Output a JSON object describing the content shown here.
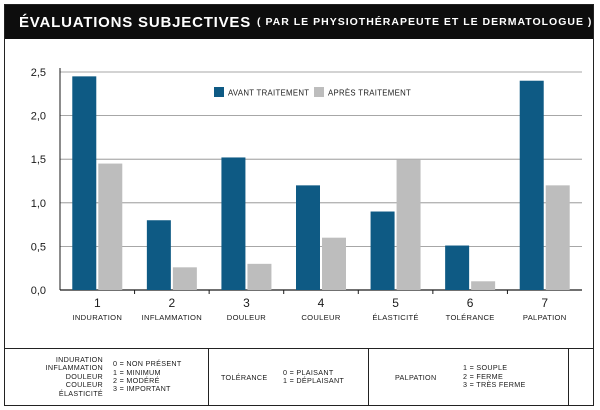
{
  "header": {
    "title": "ÉVALUATIONS SUBJECTIVES",
    "subtitle": "( PAR LE PHYSIOTHÉRAPEUTE ET LE DERMATOLOGUE )"
  },
  "chart_data": {
    "type": "bar",
    "numbers": [
      "1",
      "2",
      "3",
      "4",
      "5",
      "6",
      "7"
    ],
    "categories": [
      "INDURATION",
      "INFLAMMATION",
      "DOULEUR",
      "COULEUR",
      "ÉLASTICITÉ",
      "TOLÉRANCE",
      "PALPATION"
    ],
    "series": [
      {
        "name": "AVANT TRAITEMENT",
        "color": "#0e5a84",
        "values": [
          2.45,
          0.8,
          1.52,
          1.2,
          0.9,
          0.51,
          2.4
        ]
      },
      {
        "name": "APRÈS TRAITEMENT",
        "color": "#bdbdbd",
        "values": [
          1.45,
          0.26,
          0.3,
          0.6,
          1.5,
          0.1,
          1.2
        ]
      }
    ],
    "yticks": [
      "0,0",
      "0,5",
      "1,0",
      "1,5",
      "2,0",
      "2,5"
    ],
    "ylim": [
      0,
      2.5
    ],
    "grid": true,
    "legend_position": "top-center"
  },
  "scale_table": {
    "group1": {
      "labels": [
        "INDURATION",
        "INFLAMMATION",
        "DOULEUR",
        "COULEUR",
        "ÉLASTICITÉ"
      ],
      "values": [
        "0 = NON PRÉSENT",
        "1 = MINIMUM",
        "2 = MODÉRÉ",
        "3 = IMPORTANT"
      ]
    },
    "group2": {
      "label": "TOLÉRANCE",
      "values": [
        "0 = PLAISANT",
        "1 = DÉPLAISANT"
      ]
    },
    "group3": {
      "label": "PALPATION",
      "values": [
        "1 = SOUPLE",
        "2 = FERME",
        "3 = TRÈS FERME"
      ]
    }
  }
}
